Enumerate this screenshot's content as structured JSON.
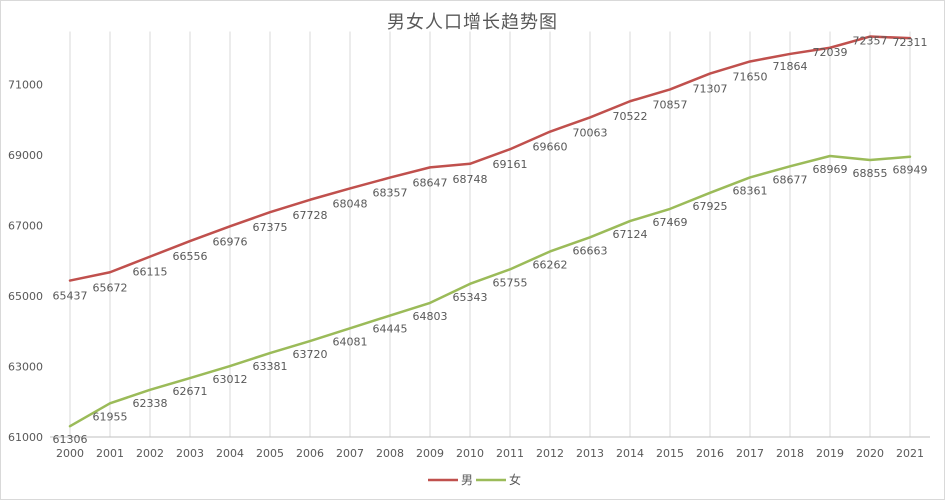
{
  "title": "男女人口增长趋势图",
  "colors": {
    "male": "#c0504d",
    "female": "#9bbb59",
    "grid": "#d9d9d9",
    "text": "#595959"
  },
  "chart_data": {
    "type": "line",
    "title": "男女人口增长趋势图",
    "xlabel": "",
    "ylabel": "",
    "ylim": [
      61000,
      72500
    ],
    "yticks": [
      61000,
      63000,
      65000,
      67000,
      69000,
      71000
    ],
    "grid": "vertical",
    "legend_position": "bottom",
    "categories": [
      "2000",
      "2001",
      "2002",
      "2003",
      "2004",
      "2005",
      "2006",
      "2007",
      "2008",
      "2009",
      "2010",
      "2011",
      "2012",
      "2013",
      "2014",
      "2015",
      "2016",
      "2017",
      "2018",
      "2019",
      "2020",
      "2021"
    ],
    "series": [
      {
        "name": "男",
        "color": "#c0504d",
        "values": [
          65437,
          65672,
          66115,
          66556,
          66976,
          67375,
          67728,
          68048,
          68357,
          68647,
          68748,
          69161,
          69660,
          70063,
          70522,
          70857,
          71307,
          71650,
          71864,
          72039,
          72357,
          72311
        ]
      },
      {
        "name": "女",
        "color": "#9bbb59",
        "values": [
          61306,
          61955,
          62338,
          62671,
          63012,
          63381,
          63720,
          64081,
          64445,
          64803,
          65343,
          65755,
          66262,
          66663,
          67124,
          67469,
          67925,
          68361,
          68677,
          68969,
          68855,
          68949
        ]
      }
    ]
  }
}
